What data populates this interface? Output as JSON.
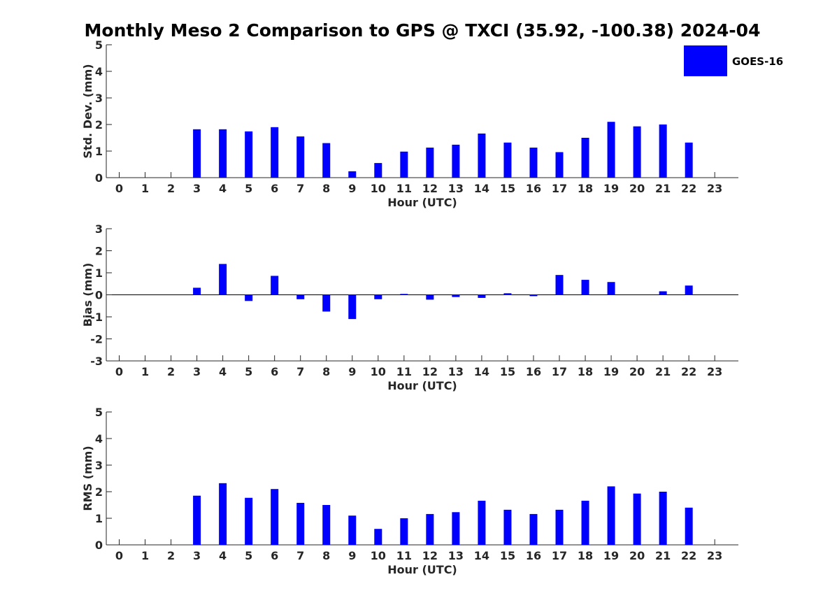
{
  "chart_title": "Monthly Meso 2 Comparison to GPS @ TXCI (35.92, -100.38) 2024-04",
  "legend": {
    "label": "GOES-16",
    "color": "#0000ff"
  },
  "colors": {
    "bar": "#0000ff",
    "axis": "#262626"
  },
  "chart_data": [
    {
      "type": "bar",
      "id": "stddev",
      "xlabel": "Hour (UTC)",
      "ylabel": "Std. Dev. (mm)",
      "categories": [
        "0",
        "1",
        "2",
        "3",
        "4",
        "5",
        "6",
        "7",
        "8",
        "9",
        "10",
        "11",
        "12",
        "13",
        "14",
        "15",
        "16",
        "17",
        "18",
        "19",
        "20",
        "21",
        "22",
        "23"
      ],
      "values": [
        null,
        null,
        null,
        1.82,
        1.82,
        1.74,
        1.9,
        1.55,
        1.3,
        0.24,
        0.55,
        0.98,
        1.13,
        1.24,
        1.66,
        1.32,
        1.13,
        0.96,
        1.5,
        2.1,
        1.93,
        2.0,
        1.32,
        null
      ],
      "ylim": [
        0,
        5
      ],
      "yticks": [
        0,
        1,
        2,
        3,
        4,
        5
      ],
      "grid": false,
      "legend_position": "top-right"
    },
    {
      "type": "bar",
      "id": "bias",
      "xlabel": "Hour (UTC)",
      "ylabel": "Bias (mm)",
      "categories": [
        "0",
        "1",
        "2",
        "3",
        "4",
        "5",
        "6",
        "7",
        "8",
        "9",
        "10",
        "11",
        "12",
        "13",
        "14",
        "15",
        "16",
        "17",
        "18",
        "19",
        "20",
        "21",
        "22",
        "23"
      ],
      "values": [
        null,
        null,
        null,
        0.32,
        1.4,
        -0.28,
        0.86,
        -0.2,
        -0.76,
        -1.1,
        -0.2,
        0.04,
        -0.22,
        -0.1,
        -0.14,
        0.07,
        -0.06,
        0.9,
        0.68,
        0.58,
        null,
        0.16,
        0.42,
        null
      ],
      "ylim": [
        -3,
        3
      ],
      "yticks": [
        -3,
        -2,
        -1,
        0,
        1,
        2,
        3
      ],
      "grid": false
    },
    {
      "type": "bar",
      "id": "rms",
      "xlabel": "Hour (UTC)",
      "ylabel": "RMS (mm)",
      "categories": [
        "0",
        "1",
        "2",
        "3",
        "4",
        "5",
        "6",
        "7",
        "8",
        "9",
        "10",
        "11",
        "12",
        "13",
        "14",
        "15",
        "16",
        "17",
        "18",
        "19",
        "20",
        "21",
        "22",
        "23"
      ],
      "values": [
        null,
        null,
        null,
        1.85,
        2.32,
        1.77,
        2.1,
        1.58,
        1.5,
        1.1,
        0.6,
        1.0,
        1.16,
        1.23,
        1.66,
        1.32,
        1.16,
        1.32,
        1.66,
        2.2,
        1.93,
        2.0,
        1.4,
        null
      ],
      "ylim": [
        0,
        5
      ],
      "yticks": [
        0,
        1,
        2,
        3,
        4,
        5
      ],
      "grid": false
    }
  ]
}
